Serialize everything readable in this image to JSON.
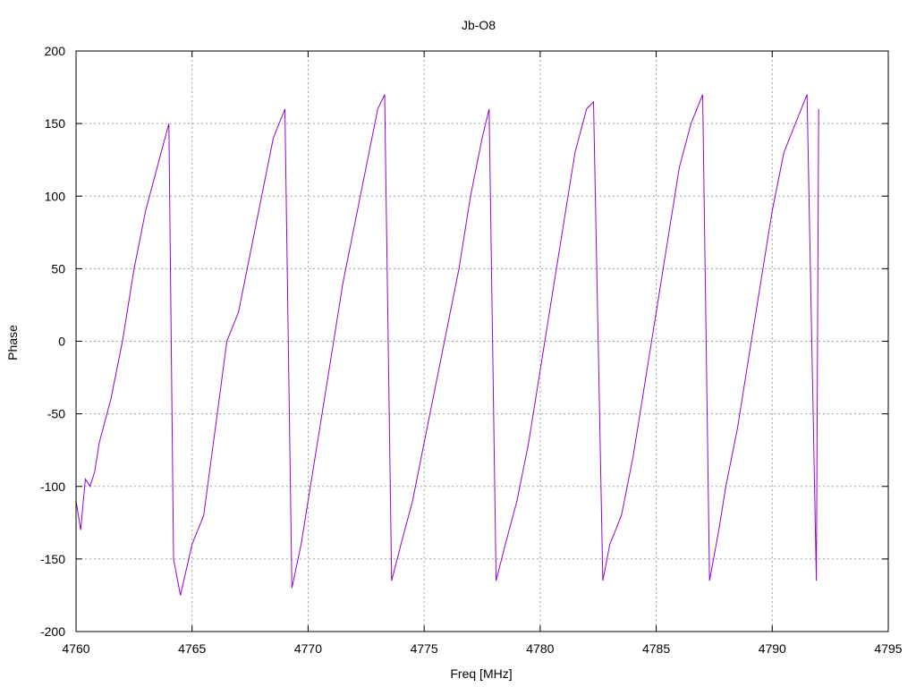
{
  "chart_data": {
    "type": "line",
    "title": "Jb-O8",
    "xlabel": "Freq [MHz]",
    "ylabel": "Phase",
    "xlim": [
      4760,
      4795
    ],
    "ylim": [
      -200,
      200
    ],
    "xticks": [
      4760,
      4765,
      4770,
      4775,
      4780,
      4785,
      4790,
      4795
    ],
    "yticks": [
      -200,
      -150,
      -100,
      -50,
      0,
      50,
      100,
      150,
      200
    ],
    "x_tick_labels": [
      "4760",
      "4765",
      "4770",
      "4775",
      "4780",
      "4785",
      "4790",
      "4795"
    ],
    "y_tick_labels": [
      "-200",
      "-150",
      "-100",
      "-50",
      "0",
      "50",
      "100",
      "150",
      "200"
    ],
    "grid": true,
    "line_color": "#9400d3",
    "series": [
      {
        "x": [
          4760.0,
          4760.2,
          4760.4,
          4760.6,
          4760.8,
          4761.0,
          4761.5,
          4762.0,
          4762.5,
          4763.0,
          4763.5,
          4764.0,
          4764.2,
          4764.5,
          4765.0,
          4765.5,
          4766.0,
          4766.5,
          4767.0,
          4767.5,
          4768.0,
          4768.5,
          4769.0,
          4769.3,
          4769.7,
          4770.0,
          4770.5,
          4771.0,
          4771.5,
          4772.0,
          4772.5,
          4773.0,
          4773.3,
          4773.6,
          4774.0,
          4774.5,
          4775.0,
          4775.5,
          4776.0,
          4776.5,
          4777.0,
          4777.5,
          4777.8,
          4778.1,
          4778.5,
          4779.0,
          4779.5,
          4780.0,
          4780.5,
          4781.0,
          4781.5,
          4782.0,
          4782.3,
          4782.7,
          4783.0,
          4783.5,
          4784.0,
          4784.5,
          4785.0,
          4785.5,
          4786.0,
          4786.5,
          4787.0,
          4787.3,
          4787.7,
          4788.0,
          4788.5,
          4789.0,
          4789.5,
          4790.0,
          4790.5,
          4791.0,
          4791.5,
          4791.9,
          4792.0
        ],
        "values": [
          -110,
          -130,
          -95,
          -100,
          -90,
          -70,
          -40,
          0,
          50,
          90,
          120,
          150,
          -150,
          -175,
          -140,
          -120,
          -60,
          0,
          20,
          60,
          100,
          140,
          160,
          -170,
          -140,
          -110,
          -60,
          -10,
          40,
          80,
          120,
          160,
          170,
          -165,
          -140,
          -110,
          -70,
          -30,
          10,
          50,
          100,
          140,
          160,
          -165,
          -140,
          -110,
          -70,
          -20,
          30,
          80,
          130,
          160,
          165,
          -165,
          -140,
          -120,
          -80,
          -30,
          20,
          70,
          120,
          150,
          170,
          -165,
          -130,
          -100,
          -60,
          -10,
          40,
          90,
          130,
          150,
          170,
          -165,
          160
        ]
      }
    ]
  }
}
